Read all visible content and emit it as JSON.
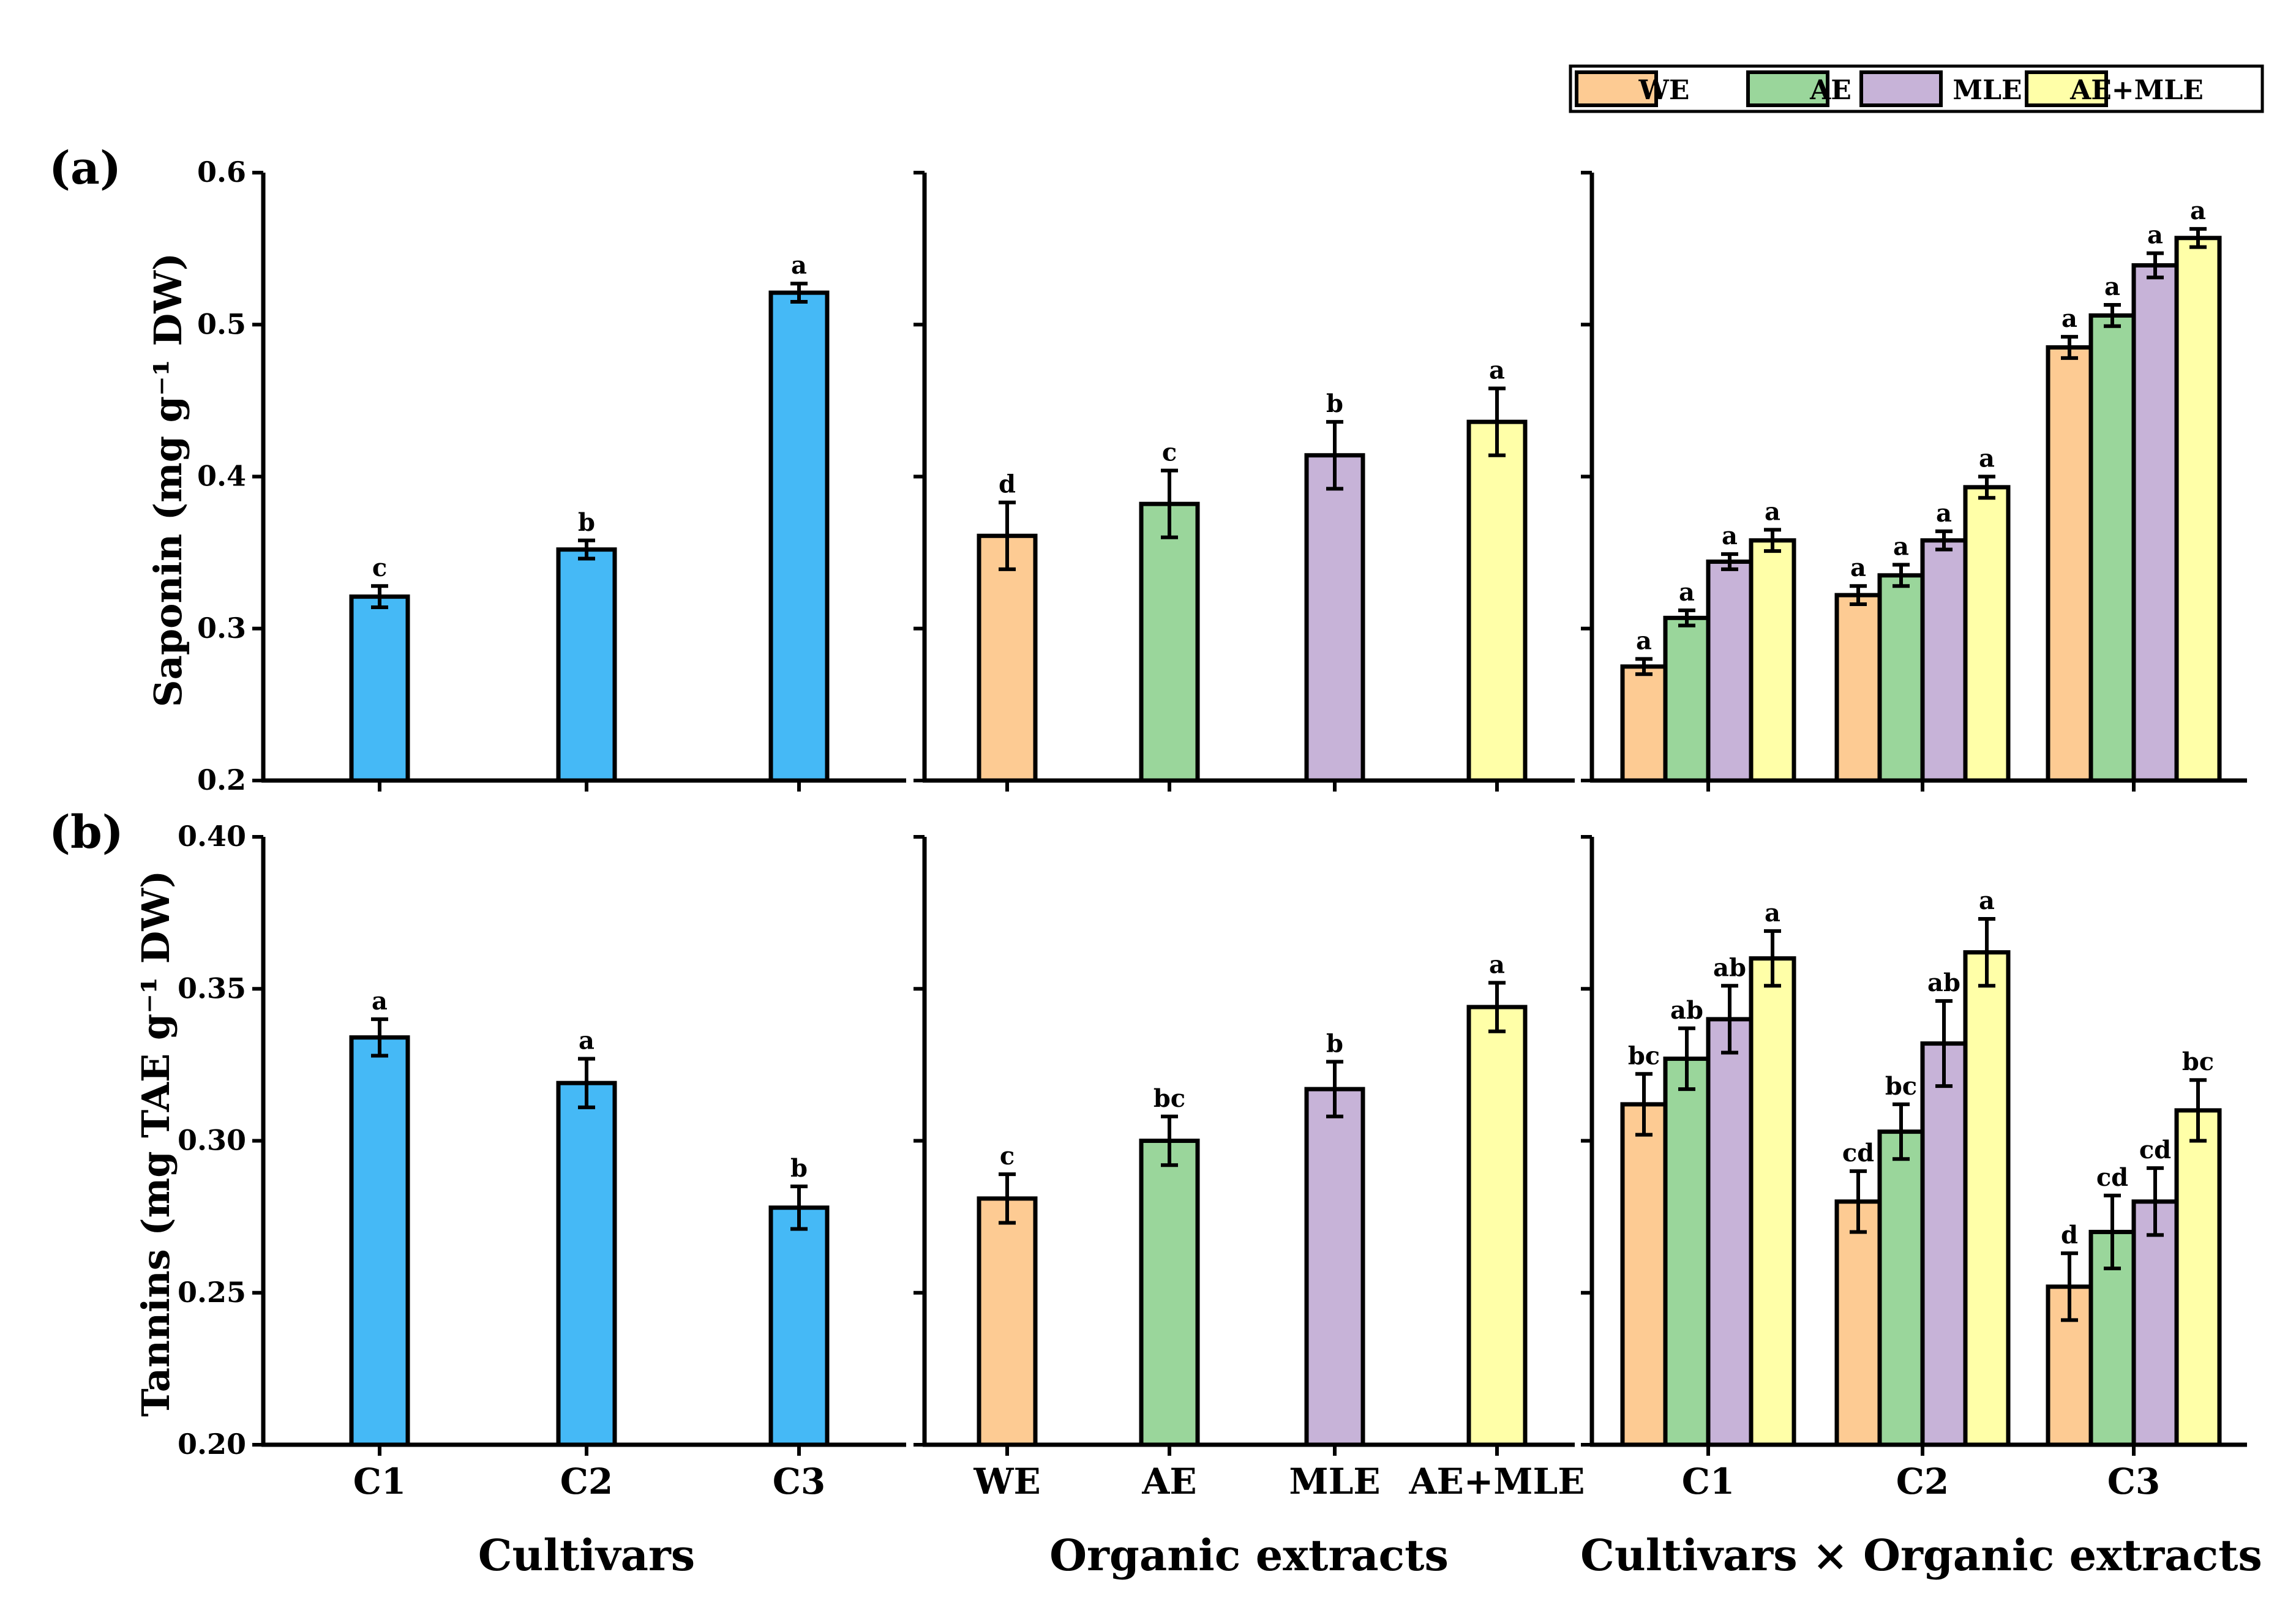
{
  "legend": {
    "entries": [
      {
        "label": "WE",
        "color": "#FDCB93"
      },
      {
        "label": "AE",
        "color": "#9AD69B"
      },
      {
        "label": "MLE",
        "color": "#C7B3D8"
      },
      {
        "label": "AE+MLE",
        "color": "#FFFFA8"
      }
    ]
  },
  "panel_labels": [
    "(a)",
    "(b)"
  ],
  "group_titles": [
    "Cultivars",
    "Organic extracts",
    "Cultivars × Organic extracts"
  ],
  "y_axis_labels": [
    "Saponin (mg g⁻¹ DW)",
    "Tannins (mg TAE g⁻¹ DW)"
  ],
  "chart_data": [
    {
      "type": "bar",
      "row": 0,
      "col": 0,
      "title": "",
      "xlabel": "Cultivars",
      "ylabel": "Saponin (mg g⁻¹ DW)",
      "ylim": [
        0.2,
        0.6
      ],
      "yticks": [
        "0.2",
        "0.3",
        "0.4",
        "0.5",
        "0.6"
      ],
      "categories": [
        "C1",
        "C2",
        "C3"
      ],
      "series": [
        {
          "name": "Cultivar",
          "color": "#45B9F6",
          "values": [
            0.321,
            0.352,
            0.521
          ],
          "errors": [
            0.007,
            0.006,
            0.006
          ],
          "letters": [
            "c",
            "b",
            "a"
          ]
        }
      ]
    },
    {
      "type": "bar",
      "row": 0,
      "col": 1,
      "title": "",
      "xlabel": "Organic extracts",
      "ylabel": "",
      "ylim": [
        0.2,
        0.6
      ],
      "yticks": [],
      "categories": [
        "WE",
        "AE",
        "MLE",
        "AE+MLE"
      ],
      "series": [
        {
          "name": "Extract",
          "colors": [
            "#FDCB93",
            "#9AD69B",
            "#C7B3D8",
            "#FFFFA8"
          ],
          "values": [
            0.361,
            0.382,
            0.414,
            0.436
          ],
          "errors": [
            0.022,
            0.022,
            0.022,
            0.022
          ],
          "letters": [
            "d",
            "c",
            "b",
            "a"
          ]
        }
      ]
    },
    {
      "type": "bar",
      "row": 0,
      "col": 2,
      "title": "",
      "xlabel": "Cultivars × Organic extracts",
      "ylabel": "",
      "ylim": [
        0.2,
        0.6
      ],
      "yticks": [],
      "categories": [
        "C1",
        "C2",
        "C3"
      ],
      "series": [
        {
          "name": "WE",
          "color": "#FDCB93",
          "values": [
            0.275,
            0.322,
            0.485
          ],
          "errors": [
            0.005,
            0.006,
            0.007
          ],
          "letters": [
            "a",
            "a",
            "a"
          ]
        },
        {
          "name": "AE",
          "color": "#9AD69B",
          "values": [
            0.307,
            0.335,
            0.506
          ],
          "errors": [
            0.005,
            0.007,
            0.007
          ],
          "letters": [
            "a",
            "a",
            "a"
          ]
        },
        {
          "name": "MLE",
          "color": "#C7B3D8",
          "values": [
            0.344,
            0.358,
            0.539
          ],
          "errors": [
            0.005,
            0.006,
            0.008
          ],
          "letters": [
            "a",
            "a",
            "a"
          ]
        },
        {
          "name": "AE+MLE",
          "color": "#FFFFA8",
          "values": [
            0.358,
            0.393,
            0.557
          ],
          "errors": [
            0.007,
            0.007,
            0.006
          ],
          "letters": [
            "a",
            "a",
            "a"
          ]
        }
      ]
    },
    {
      "type": "bar",
      "row": 1,
      "col": 0,
      "title": "",
      "xlabel": "Cultivars",
      "ylabel": "Tannins (mg TAE g⁻¹ DW)",
      "ylim": [
        0.2,
        0.4
      ],
      "yticks": [
        "0.20",
        "0.25",
        "0.30",
        "0.35",
        "0.40"
      ],
      "categories": [
        "C1",
        "C2",
        "C3"
      ],
      "series": [
        {
          "name": "Cultivar",
          "color": "#45B9F6",
          "values": [
            0.334,
            0.319,
            0.278
          ],
          "errors": [
            0.006,
            0.008,
            0.007
          ],
          "letters": [
            "a",
            "a",
            "b"
          ]
        }
      ]
    },
    {
      "type": "bar",
      "row": 1,
      "col": 1,
      "title": "",
      "xlabel": "Organic extracts",
      "ylabel": "",
      "ylim": [
        0.2,
        0.4
      ],
      "yticks": [],
      "categories": [
        "WE",
        "AE",
        "MLE",
        "AE+MLE"
      ],
      "series": [
        {
          "name": "Extract",
          "colors": [
            "#FDCB93",
            "#9AD69B",
            "#C7B3D8",
            "#FFFFA8"
          ],
          "values": [
            0.281,
            0.3,
            0.317,
            0.344
          ],
          "errors": [
            0.008,
            0.008,
            0.009,
            0.008
          ],
          "letters": [
            "c",
            "bc",
            "b",
            "a"
          ]
        }
      ]
    },
    {
      "type": "bar",
      "row": 1,
      "col": 2,
      "title": "",
      "xlabel": "Cultivars × Organic extracts",
      "ylabel": "",
      "ylim": [
        0.2,
        0.4
      ],
      "yticks": [],
      "categories": [
        "C1",
        "C2",
        "C3"
      ],
      "series": [
        {
          "name": "WE",
          "color": "#FDCB93",
          "values": [
            0.312,
            0.28,
            0.252
          ],
          "errors": [
            0.01,
            0.01,
            0.011
          ],
          "letters": [
            "bc",
            "cd",
            "d"
          ]
        },
        {
          "name": "AE",
          "color": "#9AD69B",
          "values": [
            0.327,
            0.303,
            0.27
          ],
          "errors": [
            0.01,
            0.009,
            0.012
          ],
          "letters": [
            "ab",
            "bc",
            "cd"
          ]
        },
        {
          "name": "MLE",
          "color": "#C7B3D8",
          "values": [
            0.34,
            0.332,
            0.28
          ],
          "errors": [
            0.011,
            0.014,
            0.011
          ],
          "letters": [
            "ab",
            "ab",
            "cd"
          ]
        },
        {
          "name": "AE+MLE",
          "color": "#FFFFA8",
          "values": [
            0.36,
            0.362,
            0.31
          ],
          "errors": [
            0.009,
            0.011,
            0.01
          ],
          "letters": [
            "a",
            "a",
            "bc"
          ]
        }
      ]
    }
  ]
}
